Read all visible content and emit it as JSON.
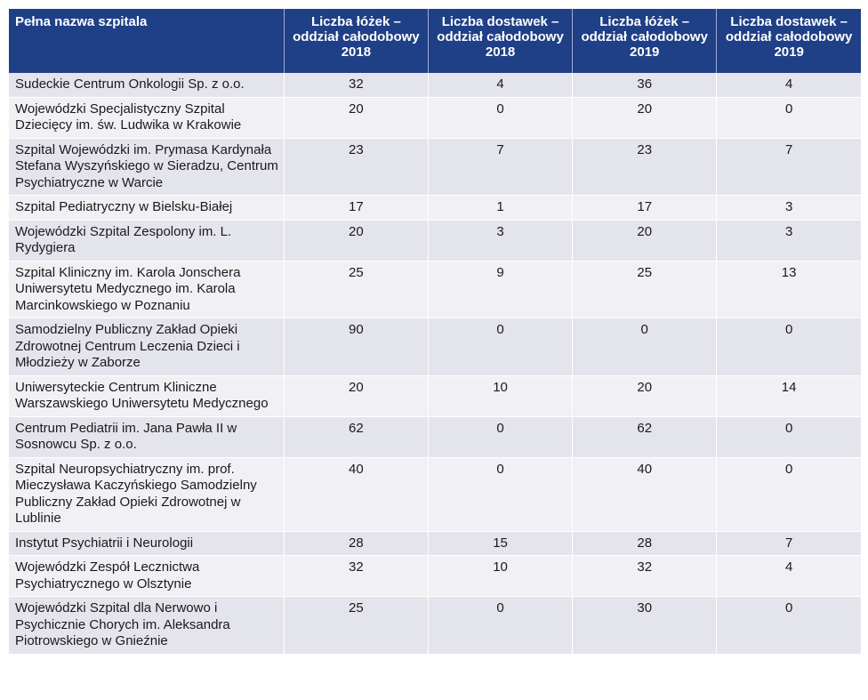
{
  "table": {
    "headers": [
      "Pełna nazwa szpitala",
      "Liczba łóżek – oddział całodobowy 2018",
      "Liczba dostawek – oddział całodobowy 2018",
      "Liczba łóżek – oddział całodobowy 2019",
      "Liczba dostawek – oddział całodobowy 2019"
    ],
    "rows": [
      {
        "name": "Sudeckie Centrum Onkologii Sp. z o.o.",
        "beds2018": "32",
        "extra2018": "4",
        "beds2019": "36",
        "extra2019": "4"
      },
      {
        "name": "Wojewódzki Specjalistyczny Szpital Dziecięcy im. św. Ludwika w Krakowie",
        "beds2018": "20",
        "extra2018": "0",
        "beds2019": "20",
        "extra2019": "0"
      },
      {
        "name": "Szpital Wojewódzki im. Prymasa Kardynała Stefana Wyszyńskiego w Sieradzu, Centrum Psychiatryczne w Warcie",
        "beds2018": "23",
        "extra2018": "7",
        "beds2019": "23",
        "extra2019": "7"
      },
      {
        "name": "Szpital Pediatryczny w Bielsku-Białej",
        "beds2018": "17",
        "extra2018": "1",
        "beds2019": "17",
        "extra2019": "3"
      },
      {
        "name": "Wojewódzki Szpital Zespolony im. L. Rydygiera",
        "beds2018": "20",
        "extra2018": "3",
        "beds2019": "20",
        "extra2019": "3"
      },
      {
        "name": "Szpital Kliniczny im. Karola Jonschera Uniwersytetu Medycznego im. Karola Marcinkowskiego w Poznaniu",
        "beds2018": "25",
        "extra2018": "9",
        "beds2019": "25",
        "extra2019": "13"
      },
      {
        "name": "Samodzielny Publiczny Zakład Opieki Zdrowotnej Centrum Leczenia Dzieci i Młodzieży w Zaborze",
        "beds2018": "90",
        "extra2018": "0",
        "beds2019": "0",
        "extra2019": "0"
      },
      {
        "name": "Uniwersyteckie Centrum Kliniczne Warszawskiego Uniwersytetu Medycznego",
        "beds2018": "20",
        "extra2018": "10",
        "beds2019": "20",
        "extra2019": "14"
      },
      {
        "name": "Centrum Pediatrii im. Jana Pawła II w Sosnowcu Sp. z o.o.",
        "beds2018": "62",
        "extra2018": "0",
        "beds2019": "62",
        "extra2019": "0"
      },
      {
        "name": "Szpital Neuropsychiatryczny im. prof. Mieczysława Kaczyńskiego Samodzielny Publiczny Zakład Opieki Zdrowotnej w Lublinie",
        "beds2018": "40",
        "extra2018": "0",
        "beds2019": "40",
        "extra2019": "0"
      },
      {
        "name": "Instytut Psychiatrii i Neurologii",
        "beds2018": "28",
        "extra2018": "15",
        "beds2019": "28",
        "extra2019": "7"
      },
      {
        "name": "Wojewódzki Zespół Lecznictwa Psychiatrycznego w Olsztynie",
        "beds2018": "32",
        "extra2018": "10",
        "beds2019": "32",
        "extra2019": "4"
      },
      {
        "name": "Wojewódzki Szpital dla Nerwowo i Psychicznie Chorych im. Aleksandra Piotrowskiego w Gnieźnie",
        "beds2018": "25",
        "extra2018": "0",
        "beds2019": "30",
        "extra2019": "0"
      }
    ]
  }
}
